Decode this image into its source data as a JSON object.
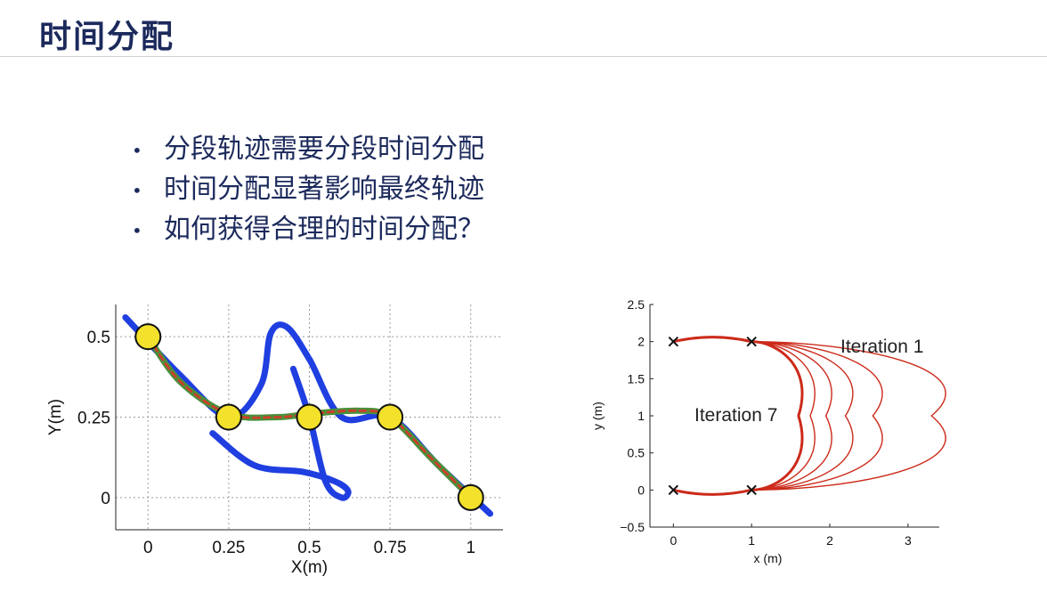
{
  "slide": {
    "title": "时间分配",
    "bullets": [
      "分段轨迹需要分段时间分配",
      "时间分配显著影响最终轨迹",
      "如何获得合理的时间分配？"
    ]
  },
  "chart_data": [
    {
      "type": "line",
      "xlabel": "X(m)",
      "ylabel": "Y(m)",
      "xlim": [
        -0.1,
        1.1
      ],
      "ylim": [
        -0.1,
        0.6
      ],
      "xticks": [
        "0",
        "0.25",
        "0.5",
        "0.75",
        "1"
      ],
      "yticks": [
        "0",
        "0.25",
        "0.5"
      ],
      "grid": true,
      "waypoints": [
        [
          0,
          0.5
        ],
        [
          0.25,
          0.25
        ],
        [
          0.5,
          0.25
        ],
        [
          0.75,
          0.25
        ],
        [
          1,
          0
        ]
      ],
      "series": [
        {
          "color": "#1f3fe0",
          "points": [
            [
              -0.07,
              0.56
            ],
            [
              0.1,
              0.38
            ],
            [
              0.25,
              0.25
            ],
            [
              0.35,
              0.35
            ],
            [
              0.38,
              0.51
            ],
            [
              0.43,
              0.53
            ],
            [
              0.5,
              0.43
            ],
            [
              0.6,
              0.25
            ],
            [
              0.75,
              0.25
            ],
            [
              0.9,
              0.1
            ],
            [
              1.06,
              -0.05
            ]
          ]
        },
        {
          "color": "#1f3fe0",
          "points": [
            [
              0.2,
              0.2
            ],
            [
              0.33,
              0.1
            ],
            [
              0.48,
              0.08
            ],
            [
              0.58,
              0.05
            ],
            [
              0.62,
              0.02
            ],
            [
              0.6,
              0.0
            ],
            [
              0.55,
              0.05
            ],
            [
              0.5,
              0.25
            ],
            [
              0.45,
              0.4
            ]
          ]
        },
        {
          "color": "#4a8f3a",
          "points": [
            [
              0,
              0.5
            ],
            [
              0.1,
              0.36
            ],
            [
              0.25,
              0.26
            ],
            [
              0.4,
              0.25
            ],
            [
              0.5,
              0.26
            ],
            [
              0.65,
              0.27
            ],
            [
              0.75,
              0.25
            ],
            [
              0.88,
              0.12
            ],
            [
              1,
              0
            ]
          ]
        },
        {
          "color": "#d63a2a",
          "points": [
            [
              0,
              0.5
            ],
            [
              0.1,
              0.36
            ],
            [
              0.25,
              0.26
            ],
            [
              0.4,
              0.25
            ],
            [
              0.5,
              0.26
            ],
            [
              0.65,
              0.27
            ],
            [
              0.75,
              0.25
            ],
            [
              0.88,
              0.12
            ],
            [
              1,
              0
            ]
          ]
        }
      ]
    },
    {
      "type": "line",
      "xlabel": "x (m)",
      "ylabel": "y (m)",
      "xlim": [
        -0.3,
        3.4
      ],
      "ylim": [
        -0.5,
        2.5
      ],
      "xticks": [
        "0",
        "1",
        "2",
        "3"
      ],
      "yticks": [
        "−0.5",
        "0",
        "0.5",
        "1",
        "1.5",
        "2",
        "2.5"
      ],
      "grid": false,
      "markers": [
        [
          0,
          2
        ],
        [
          1,
          2
        ],
        [
          0,
          0
        ],
        [
          1,
          0
        ]
      ],
      "annotations": [
        "Iteration 1",
        "Iteration 7"
      ],
      "curves_peak_x": [
        1.6,
        1.75,
        1.95,
        2.2,
        2.55,
        3.3
      ],
      "color": "#cc2a1a"
    }
  ]
}
